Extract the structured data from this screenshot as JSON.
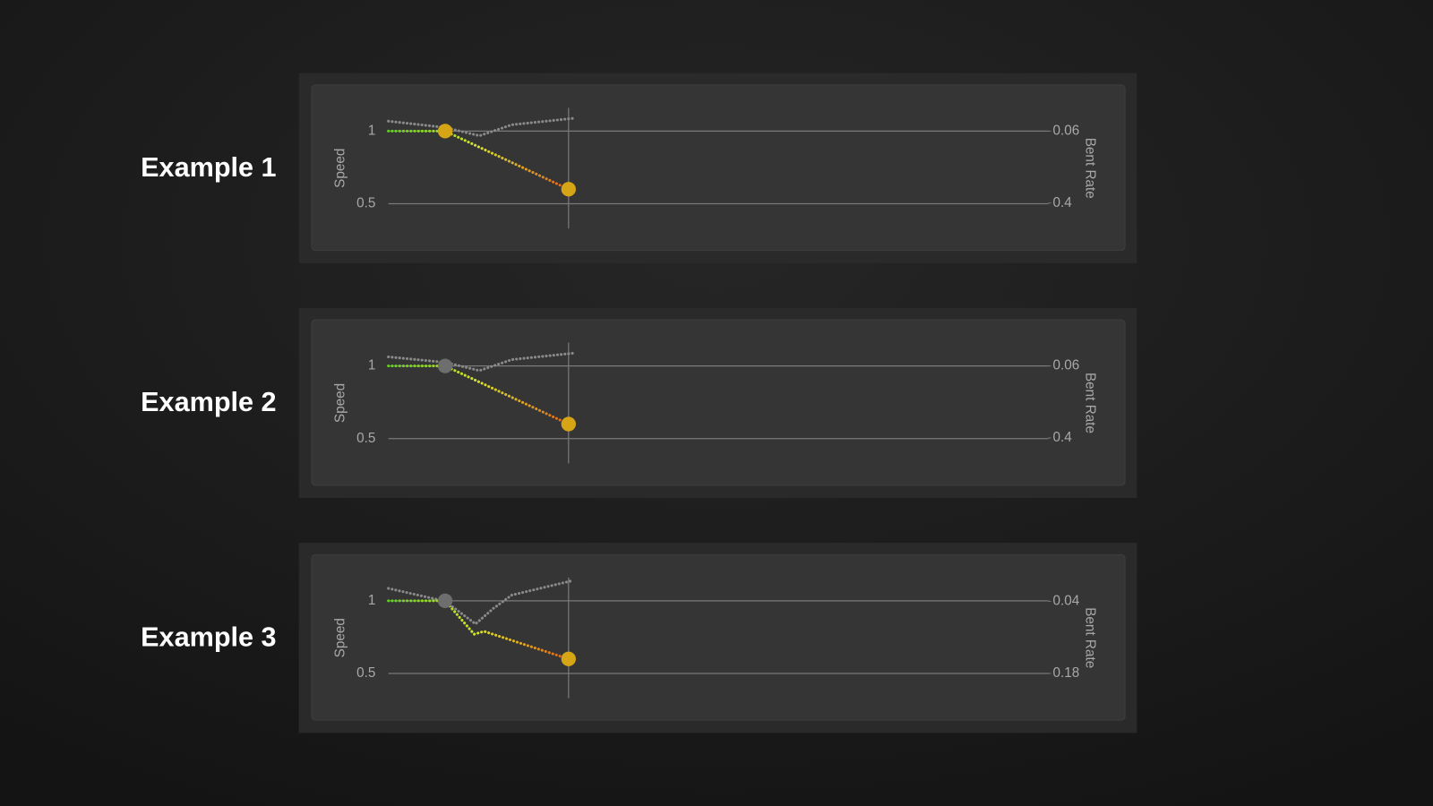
{
  "chart_data": [
    {
      "type": "line",
      "title": "Example 1",
      "ylabel": "Speed",
      "y2label": "Bent Rate",
      "xlim": [
        0,
        1
      ],
      "ylim": [
        0.33,
        1.16
      ],
      "yticks": [
        0.5,
        1
      ],
      "y2lim": [
        0.52,
        -0.05
      ],
      "y2ticks": [
        0.4,
        0.06
      ],
      "grid": true,
      "cursor_x": 0.273,
      "series": [
        {
          "name": "Speed",
          "color": [
            "#5fd21e",
            "#d9e32e",
            "#e0621c"
          ],
          "x": [
            0,
            0.086,
            0.273
          ],
          "values": [
            1,
            1,
            0.6
          ],
          "marker_colors": [
            null,
            "#d6a515",
            "#d6a515"
          ]
        },
        {
          "name": "Bent Rate",
          "color": "#8a8a8a",
          "axis": "y2",
          "x": [
            0,
            0.086,
            0.138,
            0.187,
            0.279
          ],
          "values": [
            0.013,
            0.043,
            0.082,
            0.03,
            0.0
          ]
        }
      ]
    },
    {
      "type": "line",
      "title": "Example 2",
      "ylabel": "Speed",
      "y2label": "Bent Rate",
      "xlim": [
        0,
        1
      ],
      "ylim": [
        0.33,
        1.16
      ],
      "yticks": [
        0.5,
        1
      ],
      "y2lim": [
        0.52,
        -0.05
      ],
      "y2ticks": [
        0.4,
        0.06
      ],
      "grid": true,
      "cursor_x": 0.273,
      "series": [
        {
          "name": "Speed",
          "color": [
            "#5fd21e",
            "#d9e32e",
            "#e0621c"
          ],
          "x": [
            0,
            0.086,
            0.273
          ],
          "values": [
            1,
            1,
            0.6
          ],
          "marker_colors": [
            null,
            "#6e6e6e",
            "#d6a515"
          ]
        },
        {
          "name": "Bent Rate",
          "color": "#8a8a8a",
          "axis": "y2",
          "x": [
            0,
            0.086,
            0.138,
            0.187,
            0.279
          ],
          "values": [
            0.017,
            0.043,
            0.082,
            0.03,
            0.0
          ]
        }
      ]
    },
    {
      "type": "line",
      "title": "Example 3",
      "ylabel": "Speed",
      "y2label": "Bent Rate",
      "xlim": [
        0,
        1
      ],
      "ylim": [
        0.33,
        1.16
      ],
      "yticks": [
        0.5,
        1
      ],
      "y2lim": [
        0.228,
        -0.006
      ],
      "y2ticks": [
        0.18,
        0.04
      ],
      "grid": true,
      "cursor_x": 0.273,
      "series": [
        {
          "name": "Speed",
          "color": [
            "#5fd21e",
            "#d9e32e",
            "#e0621c"
          ],
          "x": [
            0,
            0.086,
            0.13,
            0.145,
            0.273
          ],
          "values": [
            1,
            1,
            0.77,
            0.79,
            0.6
          ],
          "marker_colors": [
            null,
            "#6e6e6e",
            null,
            null,
            "#d6a515"
          ]
        },
        {
          "name": "Bent Rate",
          "color": "#8a8a8a",
          "axis": "y2",
          "x": [
            0,
            0.086,
            0.132,
            0.159,
            0.187,
            0.279
          ],
          "values": [
            0.015,
            0.04,
            0.084,
            0.054,
            0.028,
            0.0
          ]
        }
      ]
    }
  ]
}
